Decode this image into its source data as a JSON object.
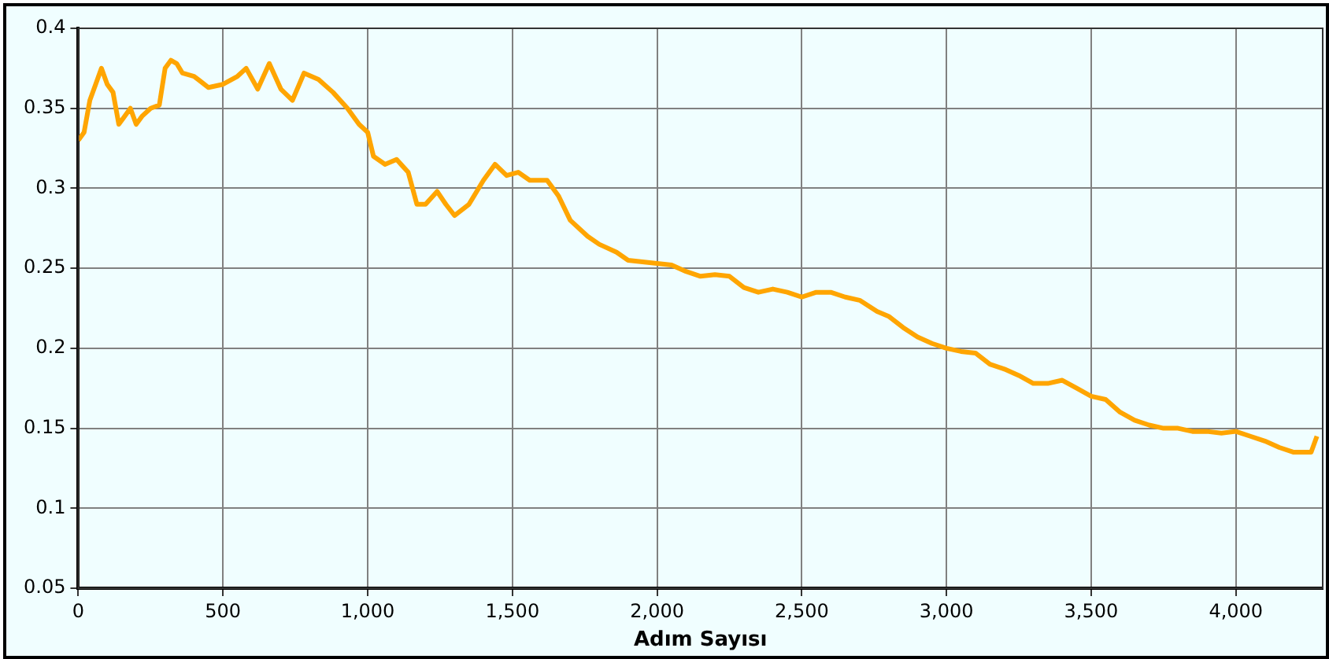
{
  "chart_data": {
    "type": "line",
    "xlabel": "Adım Sayısı",
    "x": [
      0,
      20,
      40,
      60,
      80,
      100,
      120,
      140,
      160,
      180,
      200,
      220,
      250,
      280,
      300,
      320,
      340,
      360,
      400,
      450,
      500,
      550,
      580,
      620,
      660,
      700,
      740,
      780,
      830,
      880,
      930,
      970,
      1000,
      1020,
      1060,
      1100,
      1140,
      1170,
      1200,
      1240,
      1270,
      1300,
      1350,
      1400,
      1440,
      1480,
      1520,
      1560,
      1620,
      1660,
      1700,
      1760,
      1800,
      1860,
      1900,
      2000,
      2050,
      2100,
      2150,
      2200,
      2250,
      2300,
      2350,
      2400,
      2450,
      2500,
      2550,
      2600,
      2650,
      2700,
      2760,
      2800,
      2850,
      2900,
      2950,
      3000,
      3050,
      3100,
      3150,
      3200,
      3250,
      3300,
      3350,
      3400,
      3450,
      3500,
      3550,
      3600,
      3650,
      3700,
      3750,
      3800,
      3850,
      3900,
      3950,
      4000,
      4050,
      4100,
      4150,
      4200,
      4260,
      4280
    ],
    "series": [
      {
        "color": "#ffa500",
        "values": [
          0.33,
          0.335,
          0.355,
          0.365,
          0.375,
          0.365,
          0.36,
          0.34,
          0.345,
          0.35,
          0.34,
          0.345,
          0.35,
          0.352,
          0.375,
          0.38,
          0.378,
          0.372,
          0.37,
          0.363,
          0.365,
          0.37,
          0.375,
          0.362,
          0.378,
          0.362,
          0.355,
          0.372,
          0.368,
          0.36,
          0.35,
          0.34,
          0.335,
          0.32,
          0.315,
          0.318,
          0.31,
          0.29,
          0.29,
          0.298,
          0.29,
          0.283,
          0.29,
          0.305,
          0.315,
          0.308,
          0.31,
          0.305,
          0.305,
          0.295,
          0.28,
          0.27,
          0.265,
          0.26,
          0.255,
          0.253,
          0.252,
          0.248,
          0.245,
          0.246,
          0.245,
          0.238,
          0.235,
          0.237,
          0.235,
          0.232,
          0.235,
          0.235,
          0.232,
          0.23,
          0.223,
          0.22,
          0.213,
          0.207,
          0.203,
          0.2,
          0.198,
          0.197,
          0.19,
          0.187,
          0.183,
          0.178,
          0.178,
          0.18,
          0.175,
          0.17,
          0.168,
          0.16,
          0.155,
          0.152,
          0.15,
          0.15,
          0.148,
          0.148,
          0.147,
          0.148,
          0.145,
          0.142,
          0.138,
          0.135,
          0.135,
          0.145
        ]
      }
    ],
    "xlim": [
      0,
      4300
    ],
    "xticks": [
      {
        "value": 0,
        "label": "0"
      },
      {
        "value": 500,
        "label": "500"
      },
      {
        "value": 1000,
        "label": "1,000"
      },
      {
        "value": 1500,
        "label": "1,500"
      },
      {
        "value": 2000,
        "label": "2,000"
      },
      {
        "value": 2500,
        "label": "2,500"
      },
      {
        "value": 3000,
        "label": "3,000"
      },
      {
        "value": 3500,
        "label": "3,500"
      },
      {
        "value": 4000,
        "label": "4,000"
      }
    ],
    "ylim": [
      0.05,
      0.4
    ],
    "yticks": [
      0.05,
      0.1,
      0.15,
      0.2,
      0.25,
      0.3,
      0.35,
      0.4
    ],
    "grid": true,
    "legend": false,
    "marker": "none",
    "line_style": "solid"
  }
}
